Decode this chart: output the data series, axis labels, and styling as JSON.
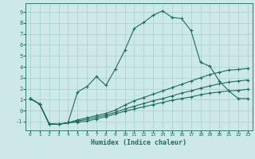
{
  "xlabel": "Humidex (Indice chaleur)",
  "bg_color": "#cce8e8",
  "grid_color": "#aacfcf",
  "line_color": "#1e6b5e",
  "xlim": [
    -0.5,
    23.5
  ],
  "ylim": [
    -1.8,
    9.8
  ],
  "xticks": [
    0,
    1,
    2,
    3,
    4,
    5,
    6,
    7,
    8,
    9,
    10,
    11,
    12,
    13,
    14,
    15,
    16,
    17,
    18,
    19,
    20,
    21,
    22,
    23
  ],
  "yticks": [
    -1,
    0,
    1,
    2,
    3,
    4,
    5,
    6,
    7,
    8,
    9
  ],
  "line1_x": [
    0,
    1,
    2,
    3,
    4,
    5,
    6,
    7,
    8,
    9,
    10,
    11,
    12,
    13,
    14,
    15,
    16,
    17,
    18,
    19,
    20,
    21,
    22,
    23
  ],
  "line1_y": [
    1.1,
    0.6,
    -1.2,
    -1.25,
    -1.1,
    1.7,
    2.2,
    3.1,
    2.3,
    3.8,
    5.5,
    7.5,
    8.05,
    8.7,
    9.1,
    8.5,
    8.4,
    7.3,
    4.4,
    4.05,
    2.7,
    1.8,
    1.1,
    1.1
  ],
  "line2_x": [
    0,
    1,
    2,
    3,
    4,
    5,
    6,
    7,
    8,
    9,
    10,
    11,
    12,
    13,
    14,
    15,
    16,
    17,
    18,
    19,
    20,
    21,
    22,
    23
  ],
  "line2_y": [
    1.1,
    0.6,
    -1.2,
    -1.25,
    -1.1,
    -0.85,
    -0.65,
    -0.45,
    -0.25,
    0.05,
    0.5,
    0.9,
    1.2,
    1.5,
    1.8,
    2.1,
    2.4,
    2.7,
    3.0,
    3.3,
    3.5,
    3.7,
    3.75,
    3.85
  ],
  "line3_x": [
    0,
    1,
    2,
    3,
    4,
    5,
    6,
    7,
    8,
    9,
    10,
    11,
    12,
    13,
    14,
    15,
    16,
    17,
    18,
    19,
    20,
    21,
    22,
    23
  ],
  "line3_y": [
    1.1,
    0.6,
    -1.2,
    -1.25,
    -1.1,
    -0.95,
    -0.8,
    -0.6,
    -0.4,
    -0.15,
    0.15,
    0.4,
    0.65,
    0.9,
    1.1,
    1.35,
    1.6,
    1.8,
    2.05,
    2.25,
    2.45,
    2.6,
    2.7,
    2.8
  ],
  "line4_x": [
    0,
    1,
    2,
    3,
    4,
    5,
    6,
    7,
    8,
    9,
    10,
    11,
    12,
    13,
    14,
    15,
    16,
    17,
    18,
    19,
    20,
    21,
    22,
    23
  ],
  "line4_y": [
    1.1,
    0.6,
    -1.2,
    -1.25,
    -1.1,
    -1.05,
    -0.95,
    -0.75,
    -0.55,
    -0.3,
    -0.05,
    0.15,
    0.35,
    0.55,
    0.75,
    0.95,
    1.1,
    1.25,
    1.45,
    1.6,
    1.7,
    1.8,
    1.85,
    1.95
  ]
}
